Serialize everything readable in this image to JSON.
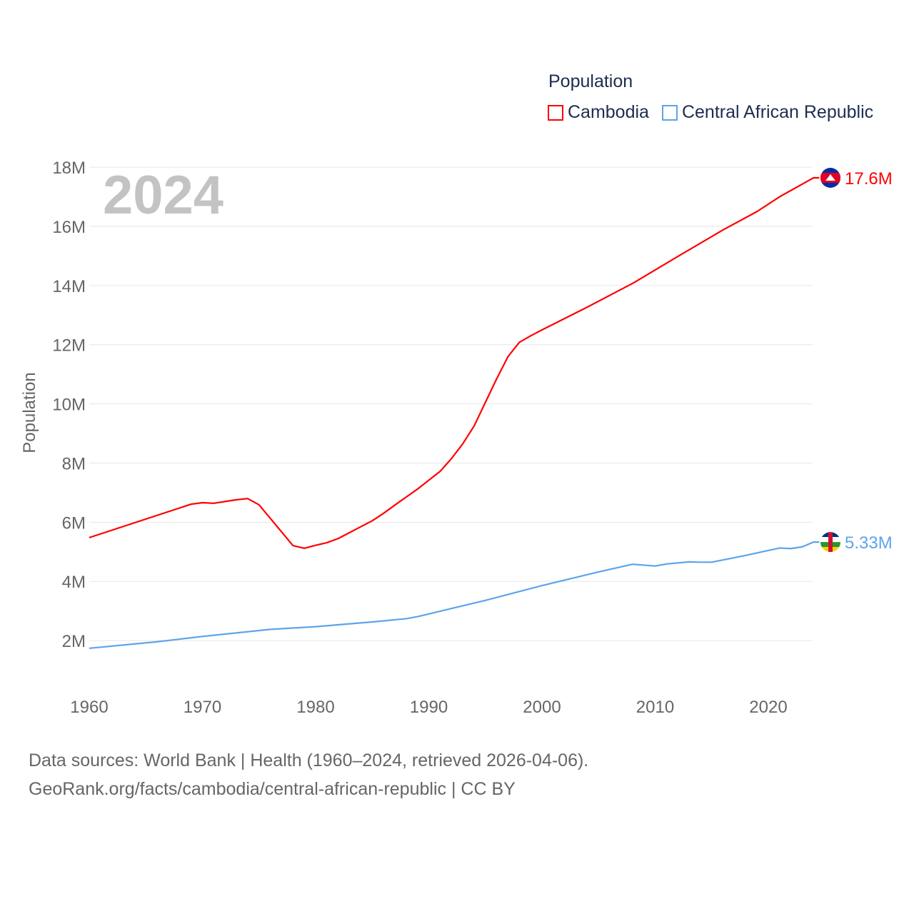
{
  "chart_data": {
    "type": "line",
    "title": "Population",
    "ylabel": "Population",
    "xlabel": "",
    "current_year_label": "2024",
    "xlim": [
      1960,
      2024
    ],
    "ylim": [
      0,
      18000000
    ],
    "x_ticks": [
      1960,
      1970,
      1980,
      1990,
      2000,
      2010,
      2020
    ],
    "x_tick_labels": [
      "1960",
      "1970",
      "1980",
      "1990",
      "2000",
      "2010",
      "2020"
    ],
    "y_ticks": [
      2000000,
      4000000,
      6000000,
      8000000,
      10000000,
      12000000,
      14000000,
      16000000,
      18000000
    ],
    "y_tick_labels": [
      "2M",
      "4M",
      "6M",
      "8M",
      "10M",
      "12M",
      "14M",
      "16M",
      "18M"
    ],
    "grid": true,
    "legend_placement": "top-right",
    "series": [
      {
        "name": "Cambodia",
        "color": "#ff0000",
        "end_label": "17.6M",
        "flag": "cambodia-flag",
        "points": [
          [
            1960,
            5.48
          ],
          [
            1969,
            6.61
          ],
          [
            1970,
            6.66
          ],
          [
            1971,
            6.64
          ],
          [
            1973,
            6.76
          ],
          [
            1974,
            6.8
          ],
          [
            1975,
            6.59
          ],
          [
            1978,
            5.21
          ],
          [
            1979,
            5.12
          ],
          [
            1980,
            5.22
          ],
          [
            1981,
            5.31
          ],
          [
            1982,
            5.45
          ],
          [
            1983,
            5.65
          ],
          [
            1984,
            5.85
          ],
          [
            1985,
            6.05
          ],
          [
            1986,
            6.3
          ],
          [
            1987,
            6.58
          ],
          [
            1988,
            6.85
          ],
          [
            1989,
            7.12
          ],
          [
            1990,
            7.42
          ],
          [
            1991,
            7.72
          ],
          [
            1992,
            8.15
          ],
          [
            1993,
            8.65
          ],
          [
            1994,
            9.25
          ],
          [
            1995,
            10.05
          ],
          [
            1996,
            10.85
          ],
          [
            1997,
            11.6
          ],
          [
            1998,
            12.08
          ],
          [
            1999,
            12.3
          ],
          [
            2000,
            12.5
          ],
          [
            2004,
            13.27
          ],
          [
            2008,
            14.07
          ],
          [
            2012,
            14.98
          ],
          [
            2016,
            15.88
          ],
          [
            2019,
            16.5
          ],
          [
            2021,
            17.0
          ],
          [
            2024,
            17.64
          ]
        ]
      },
      {
        "name": "Central African Republic",
        "color": "#5ea3ec",
        "end_label": "5.33M",
        "flag": "central-african-republic-flag",
        "points": [
          [
            1960,
            1.74
          ],
          [
            1966,
            1.96
          ],
          [
            1970,
            2.14
          ],
          [
            1976,
            2.38
          ],
          [
            1980,
            2.47
          ],
          [
            1985,
            2.63
          ],
          [
            1988,
            2.74
          ],
          [
            1989,
            2.81
          ],
          [
            1990,
            2.9
          ],
          [
            1995,
            3.36
          ],
          [
            2000,
            3.86
          ],
          [
            2005,
            4.32
          ],
          [
            2008,
            4.58
          ],
          [
            2010,
            4.52
          ],
          [
            2011,
            4.59
          ],
          [
            2013,
            4.66
          ],
          [
            2014,
            4.65
          ],
          [
            2015,
            4.65
          ],
          [
            2018,
            4.88
          ],
          [
            2021,
            5.13
          ],
          [
            2022,
            5.11
          ],
          [
            2023,
            5.17
          ],
          [
            2024,
            5.33
          ]
        ]
      }
    ]
  },
  "footer": {
    "line1": "Data sources: World Bank | Health (1960–2024, retrieved 2026-04-06).",
    "line2": "GeoRank.org/facts/cambodia/central-african-republic | CC BY"
  }
}
